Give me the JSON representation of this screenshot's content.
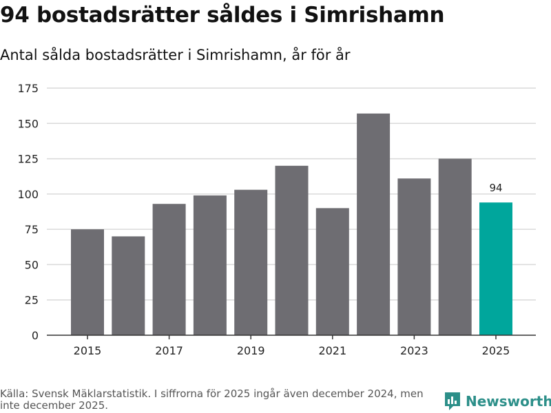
{
  "title": "94 bostadsrätter såldes i Simrishamn",
  "subtitle": "Antal sålda bostadsrätter i Simrishamn, år för år",
  "footer": {
    "source": "Källa: Svensk Mäklarstatistik. I siffrorna för 2025 ingår även december 2024, men inte december 2025.",
    "brand": "Newsworthy"
  },
  "colors": {
    "bar": "#6e6d72",
    "highlight": "#00a69c",
    "grid": "#d9d9d9",
    "brand": "#2c8f89"
  },
  "chart_data": {
    "type": "bar",
    "title": "94 bostadsrätter såldes i Simrishamn",
    "subtitle": "Antal sålda bostadsrätter i Simrishamn, år för år",
    "xlabel": "",
    "ylabel": "",
    "categories": [
      "2015",
      "2016",
      "2017",
      "2018",
      "2019",
      "2020",
      "2021",
      "2022",
      "2023",
      "2024",
      "2025"
    ],
    "values": [
      75,
      70,
      93,
      99,
      103,
      120,
      90,
      157,
      111,
      125,
      94
    ],
    "highlight_index": 10,
    "data_labels": [
      {
        "index": 10,
        "text": "94"
      }
    ],
    "x_tick_labels": [
      "2015",
      "2017",
      "2019",
      "2021",
      "2023",
      "2025"
    ],
    "y_ticks": [
      0,
      25,
      50,
      75,
      100,
      125,
      150,
      175
    ],
    "ylim": [
      0,
      175
    ],
    "grid": true
  }
}
